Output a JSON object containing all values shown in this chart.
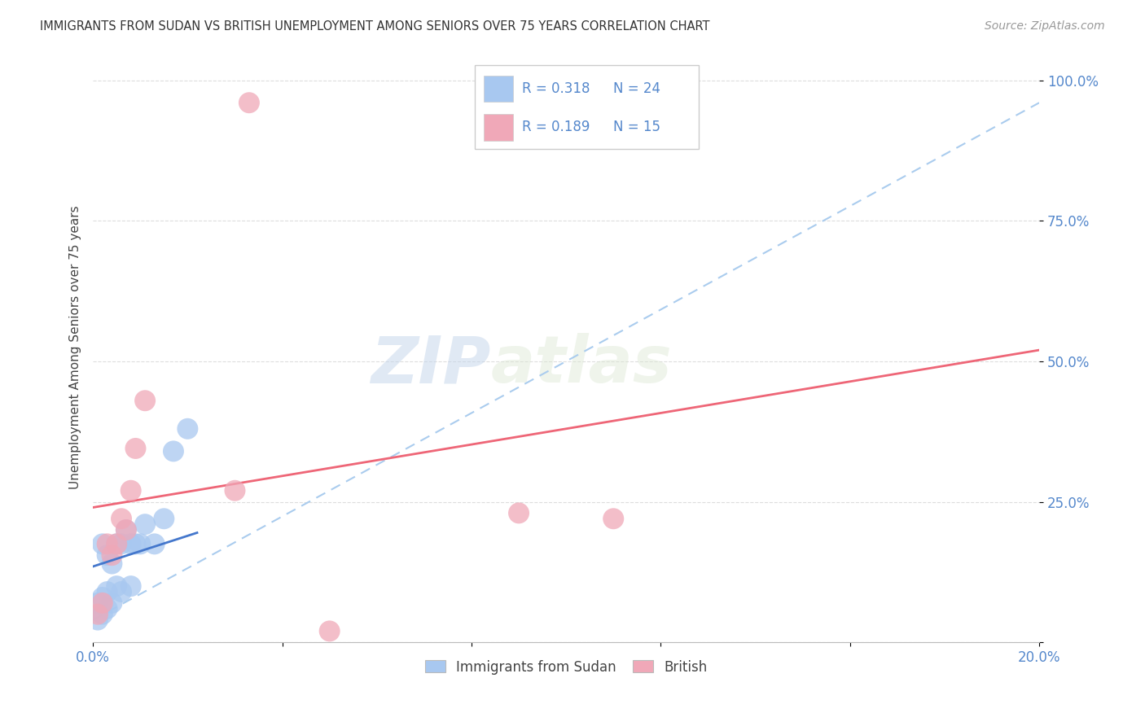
{
  "title": "IMMIGRANTS FROM SUDAN VS BRITISH UNEMPLOYMENT AMONG SENIORS OVER 75 YEARS CORRELATION CHART",
  "source": "Source: ZipAtlas.com",
  "ylabel": "Unemployment Among Seniors over 75 years",
  "xlim": [
    0.0,
    0.2
  ],
  "ylim": [
    0.0,
    1.05
  ],
  "xticks": [
    0.0,
    0.04,
    0.08,
    0.12,
    0.16,
    0.2
  ],
  "xticklabels": [
    "0.0%",
    "",
    "",
    "",
    "",
    "20.0%"
  ],
  "yticks": [
    0.0,
    0.25,
    0.5,
    0.75,
    1.0
  ],
  "yticklabels": [
    "",
    "25.0%",
    "50.0%",
    "75.0%",
    "100.0%"
  ],
  "blue_R": 0.318,
  "blue_N": 24,
  "pink_R": 0.189,
  "pink_N": 15,
  "blue_color": "#a8c8f0",
  "pink_color": "#f0a8b8",
  "blue_line_color": "#4477cc",
  "pink_line_color": "#ee6677",
  "dashed_line_color": "#aaccee",
  "watermark_zip": "ZIP",
  "watermark_atlas": "atlas",
  "blue_scatter_x": [
    0.001,
    0.001,
    0.002,
    0.002,
    0.002,
    0.003,
    0.003,
    0.003,
    0.004,
    0.004,
    0.005,
    0.005,
    0.006,
    0.006,
    0.007,
    0.008,
    0.008,
    0.009,
    0.01,
    0.011,
    0.013,
    0.015,
    0.017,
    0.02
  ],
  "blue_scatter_y": [
    0.04,
    0.07,
    0.05,
    0.08,
    0.175,
    0.06,
    0.09,
    0.155,
    0.07,
    0.14,
    0.1,
    0.175,
    0.09,
    0.175,
    0.2,
    0.1,
    0.175,
    0.175,
    0.175,
    0.21,
    0.175,
    0.22,
    0.34,
    0.38
  ],
  "pink_scatter_x": [
    0.001,
    0.002,
    0.003,
    0.004,
    0.005,
    0.006,
    0.007,
    0.008,
    0.009,
    0.011,
    0.03,
    0.033,
    0.05,
    0.09,
    0.11
  ],
  "pink_scatter_y": [
    0.05,
    0.07,
    0.175,
    0.155,
    0.175,
    0.22,
    0.2,
    0.27,
    0.345,
    0.43,
    0.27,
    0.96,
    0.02,
    0.23,
    0.22
  ],
  "blue_trendline_x": [
    0.0,
    0.022
  ],
  "blue_trendline_y": [
    0.135,
    0.195
  ],
  "pink_trendline_x": [
    0.0,
    0.2
  ],
  "pink_trendline_y": [
    0.24,
    0.52
  ],
  "dashed_trendline_x": [
    0.0,
    0.2
  ],
  "dashed_trendline_y": [
    0.04,
    0.96
  ]
}
